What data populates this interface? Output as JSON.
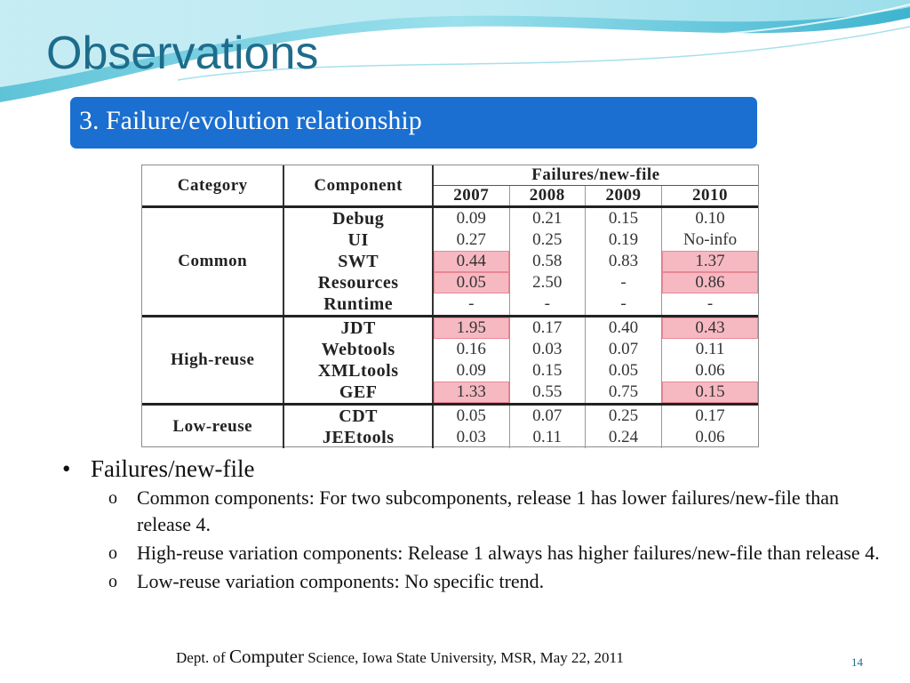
{
  "slide": {
    "title": "Observations",
    "subtitle": "3. Failure/evolution relationship",
    "page_number": "14"
  },
  "table": {
    "headers": {
      "category": "Category",
      "component": "Component",
      "group": "Failures/new-file"
    },
    "years": [
      "2007",
      "2008",
      "2009",
      "2010"
    ],
    "groups": [
      {
        "category": "Common",
        "rows": [
          {
            "component": "Debug",
            "values": [
              "0.09",
              "0.21",
              "0.15",
              "0.10"
            ],
            "highlight": [
              false,
              false,
              false,
              false
            ]
          },
          {
            "component": "UI",
            "values": [
              "0.27",
              "0.25",
              "0.19",
              "No-info"
            ],
            "highlight": [
              false,
              false,
              false,
              false
            ]
          },
          {
            "component": "SWT",
            "values": [
              "0.44",
              "0.58",
              "0.83",
              "1.37"
            ],
            "highlight": [
              true,
              false,
              false,
              true
            ]
          },
          {
            "component": "Resources",
            "values": [
              "0.05",
              "2.50",
              "-",
              "0.86"
            ],
            "highlight": [
              true,
              false,
              false,
              true
            ]
          },
          {
            "component": "Runtime",
            "values": [
              "-",
              "-",
              "-",
              "-"
            ],
            "highlight": [
              false,
              false,
              false,
              false
            ]
          }
        ]
      },
      {
        "category": "High-reuse",
        "rows": [
          {
            "component": "JDT",
            "values": [
              "1.95",
              "0.17",
              "0.40",
              "0.43"
            ],
            "highlight": [
              true,
              false,
              false,
              true
            ]
          },
          {
            "component": "Webtools",
            "values": [
              "0.16",
              "0.03",
              "0.07",
              "0.11"
            ],
            "highlight": [
              false,
              false,
              false,
              false
            ]
          },
          {
            "component": "XMLtools",
            "values": [
              "0.09",
              "0.15",
              "0.05",
              "0.06"
            ],
            "highlight": [
              false,
              false,
              false,
              false
            ]
          },
          {
            "component": "GEF",
            "values": [
              "1.33",
              "0.55",
              "0.75",
              "0.15"
            ],
            "highlight": [
              true,
              false,
              false,
              true
            ]
          }
        ]
      },
      {
        "category": "Low-reuse",
        "rows": [
          {
            "component": "CDT",
            "values": [
              "0.05",
              "0.07",
              "0.25",
              "0.17"
            ],
            "highlight": [
              false,
              false,
              false,
              false
            ]
          },
          {
            "component": "JEEtools",
            "values": [
              "0.03",
              "0.11",
              "0.24",
              "0.06"
            ],
            "highlight": [
              false,
              false,
              false,
              false
            ]
          }
        ]
      }
    ]
  },
  "bullets": {
    "main": "Failures/new-file",
    "sub": [
      "Common components: For two subcomponents, release 1 has lower failures/new-file than release 4.",
      "High-reuse variation components: Release 1 always has higher failures/new-file than release 4.",
      "Low-reuse variation components: No specific trend."
    ]
  },
  "footer": {
    "dept": "Dept. of",
    "computer": "Computer",
    "rest": "Science,  Iowa State University,  MSR, May 22, 2011"
  },
  "colors": {
    "title": "#1e6c8c",
    "subtitle_bg": "#1a6fd0",
    "highlight": "#f6b9c2"
  }
}
